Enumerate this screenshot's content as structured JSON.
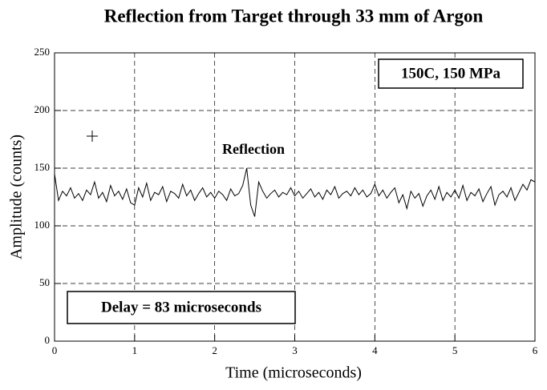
{
  "chart_data": {
    "type": "line",
    "title": "Reflection from Target through 33 mm of Argon",
    "xlabel": "Time (microseconds)",
    "ylabel": "Amplitude (counts)",
    "annotations": [
      "Reflection",
      "150C, 150 MPa",
      "Delay = 83 microseconds"
    ],
    "x": [
      0,
      0.05,
      0.1,
      0.15,
      0.2,
      0.25,
      0.3,
      0.35,
      0.4,
      0.45,
      0.5,
      0.55,
      0.6,
      0.65,
      0.7,
      0.75,
      0.8,
      0.85,
      0.9,
      0.95,
      1,
      1.05,
      1.1,
      1.15,
      1.2,
      1.25,
      1.3,
      1.35,
      1.4,
      1.45,
      1.5,
      1.55,
      1.6,
      1.65,
      1.7,
      1.75,
      1.8,
      1.85,
      1.9,
      1.95,
      2,
      2.05,
      2.1,
      2.15,
      2.2,
      2.25,
      2.3,
      2.35,
      2.4,
      2.45,
      2.5,
      2.55,
      2.6,
      2.65,
      2.7,
      2.75,
      2.8,
      2.85,
      2.9,
      2.95,
      3,
      3.05,
      3.1,
      3.15,
      3.2,
      3.25,
      3.3,
      3.35,
      3.4,
      3.45,
      3.5,
      3.55,
      3.6,
      3.65,
      3.7,
      3.75,
      3.8,
      3.85,
      3.9,
      3.95,
      4,
      4.05,
      4.1,
      4.15,
      4.2,
      4.25,
      4.3,
      4.35,
      4.4,
      4.45,
      4.5,
      4.55,
      4.6,
      4.65,
      4.7,
      4.75,
      4.8,
      4.85,
      4.9,
      4.95,
      5,
      5.05,
      5.1,
      5.15,
      5.2,
      5.25,
      5.3,
      5.35,
      5.4,
      5.45,
      5.5,
      5.55,
      5.6,
      5.65,
      5.7,
      5.75,
      5.8,
      5.85,
      5.9,
      5.95,
      6
    ],
    "series": [
      {
        "name": "Amplitude",
        "color": "#000000",
        "values": [
          145,
          122,
          130,
          126,
          133,
          124,
          128,
          122,
          131,
          127,
          138,
          124,
          129,
          121,
          135,
          126,
          130,
          123,
          132,
          120,
          118,
          133,
          125,
          137,
          122,
          129,
          127,
          134,
          121,
          130,
          128,
          124,
          136,
          126,
          131,
          122,
          128,
          133,
          125,
          129,
          124,
          130,
          127,
          122,
          132,
          126,
          128,
          135,
          150,
          118,
          108,
          138,
          130,
          124,
          128,
          131,
          125,
          129,
          127,
          133,
          126,
          130,
          124,
          128,
          132,
          125,
          129,
          123,
          131,
          127,
          134,
          124,
          128,
          130,
          126,
          133,
          127,
          131,
          125,
          128,
          136,
          126,
          131,
          124,
          129,
          133,
          120,
          127,
          115,
          130,
          124,
          128,
          117,
          126,
          131,
          123,
          134,
          122,
          129,
          125,
          131,
          124,
          135,
          122,
          129,
          126,
          132,
          121,
          128,
          134,
          118,
          127,
          130,
          125,
          133,
          122,
          129,
          136,
          131,
          140,
          138
        ]
      }
    ],
    "xlim": [
      0,
      6
    ],
    "xticks": [
      0,
      1,
      2,
      3,
      4,
      5,
      6
    ],
    "ylim": [
      0,
      250
    ],
    "yticks": [
      0,
      50,
      100,
      150,
      200,
      250
    ],
    "grid": true
  }
}
